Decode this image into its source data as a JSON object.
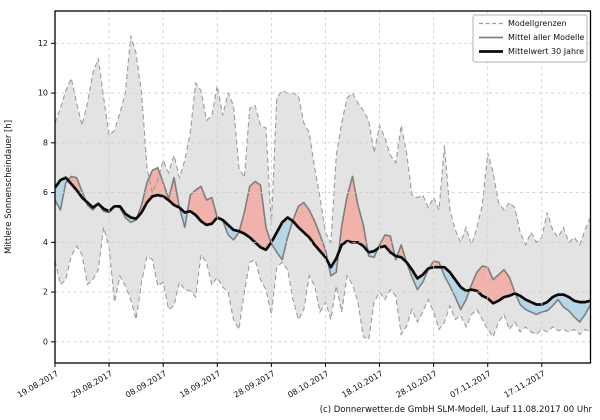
{
  "figure": {
    "ylabel": "Mittlere Sonnenscheindauer [h]",
    "footer": "(c) Donnerwetter.de GmbH SLM-Modell, Lauf 11.08.2017 00 Uhr"
  },
  "chart_data": {
    "type": "line",
    "title": "",
    "xlabel": "",
    "ylabel": "Mittlere Sonnenscheindauer [h]",
    "grid": true,
    "legend_position": "top-right",
    "xlim": [
      0,
      99
    ],
    "ylim": [
      -0.85,
      13.3
    ],
    "y_ticks": [
      0,
      2,
      4,
      6,
      8,
      10,
      12
    ],
    "x_tick_days": [
      0,
      10,
      20,
      30,
      40,
      50,
      60,
      70,
      80,
      90
    ],
    "x_tick_labels": [
      "19.08.2017",
      "29.08.2017",
      "08.09.2017",
      "18.09.2017",
      "28.09.2017",
      "08.10.2017",
      "18.10.2017",
      "28.10.2017",
      "07.11.2017",
      "17.11.2017"
    ],
    "legend": [
      {
        "label": "Modellgrenzen",
        "style": "dashed"
      },
      {
        "label": "Mittel aller Modelle",
        "style": "gray"
      },
      {
        "label": "Mittelwert 30 Jahre",
        "style": "black"
      }
    ],
    "colors": {
      "envelope_fill": "#e3e3e3",
      "envelope_border": "#9b9b9b",
      "model_mean_line": "#7f7f7f",
      "climate_mean_line": "#0b0b0b",
      "above_fill": "#f0b2aa",
      "below_fill": "#b7d6e7",
      "grid": "#cfcfcf",
      "axis": "#000000"
    },
    "series": [
      {
        "name": "Modellgrenzen (obere Grenze)",
        "role": "upper",
        "values": [
          8.8,
          9.4,
          10.1,
          10.6,
          9.6,
          8.7,
          9.6,
          10.8,
          11.4,
          9.8,
          8.3,
          8.5,
          9.2,
          10.0,
          12.3,
          11.6,
          10.0,
          7.0,
          6.0,
          6.5,
          7.3,
          6.8,
          7.5,
          6.6,
          7.3,
          8.4,
          10.4,
          10.1,
          8.9,
          9.1,
          10.3,
          9.1,
          10.0,
          9.5,
          7.0,
          6.6,
          9.4,
          9.5,
          8.7,
          8.6,
          4.7,
          9.8,
          10.1,
          10.0,
          10.0,
          9.9,
          8.8,
          8.4,
          7.0,
          5.8,
          4.4,
          4.0,
          7.5,
          8.8,
          9.8,
          10.0,
          9.6,
          9.3,
          8.9,
          7.6,
          8.7,
          8.2,
          7.5,
          7.2,
          8.7,
          7.6,
          5.9,
          5.8,
          5.9,
          5.4,
          5.8,
          5.3,
          7.9,
          5.3,
          4.5,
          4.0,
          4.6,
          3.9,
          4.6,
          5.5,
          7.6,
          6.8,
          5.6,
          5.3,
          5.6,
          5.4,
          4.4,
          3.9,
          4.4,
          4.0,
          4.2,
          5.2,
          4.5,
          4.2,
          4.6,
          4.0,
          4.2,
          3.9,
          4.5,
          5.0
        ]
      },
      {
        "name": "Modellgrenzen (untere Grenze)",
        "role": "lower",
        "values": [
          3.25,
          2.3,
          2.5,
          3.45,
          3.85,
          3.5,
          2.3,
          2.5,
          2.9,
          4.6,
          3.8,
          1.6,
          2.65,
          2.25,
          1.7,
          0.9,
          2.4,
          3.45,
          3.3,
          2.25,
          2.4,
          1.3,
          1.45,
          2.4,
          2.1,
          2.05,
          1.8,
          3.5,
          3.2,
          2.3,
          2.6,
          2.2,
          2.0,
          0.9,
          0.5,
          2.0,
          3.2,
          3.3,
          2.5,
          2.1,
          1.1,
          3.0,
          3.2,
          2.9,
          1.7,
          0.9,
          1.3,
          2.65,
          2.25,
          1.2,
          1.6,
          0.9,
          2.25,
          1.2,
          2.65,
          2.3,
          1.6,
          0.2,
          0.1,
          1.6,
          2.0,
          1.7,
          2.1,
          1.85,
          0.3,
          0.65,
          1.3,
          0.8,
          1.2,
          1.7,
          1.2,
          0.5,
          0.8,
          1.45,
          0.9,
          1.05,
          0.6,
          1.1,
          1.3,
          0.9,
          0.5,
          0.2,
          0.8,
          1.1,
          0.5,
          0.8,
          0.4,
          0.6,
          0.4,
          0.3,
          0.5,
          0.4,
          0.6,
          0.45,
          0.5,
          0.4,
          0.5,
          0.3,
          0.5,
          0.4
        ]
      },
      {
        "name": "Mittel aller Modelle",
        "role": "model_mean",
        "values": [
          5.7,
          5.3,
          6.4,
          6.65,
          6.6,
          6.05,
          5.5,
          5.3,
          5.55,
          5.25,
          5.2,
          5.45,
          5.4,
          5.0,
          4.8,
          4.9,
          5.5,
          6.4,
          6.9,
          7.0,
          6.4,
          5.75,
          6.6,
          5.4,
          4.6,
          5.9,
          6.1,
          6.25,
          5.7,
          5.8,
          5.0,
          4.9,
          4.3,
          4.1,
          4.4,
          5.2,
          6.25,
          6.45,
          6.3,
          4.6,
          3.95,
          3.6,
          3.3,
          4.2,
          4.9,
          5.45,
          5.6,
          5.3,
          4.85,
          4.3,
          3.7,
          2.65,
          2.8,
          4.65,
          5.85,
          6.65,
          5.5,
          4.7,
          3.45,
          3.4,
          3.9,
          4.3,
          4.25,
          3.3,
          3.9,
          3.2,
          2.6,
          2.1,
          2.4,
          2.9,
          3.25,
          3.2,
          2.65,
          2.25,
          1.8,
          1.3,
          1.7,
          2.3,
          2.8,
          3.05,
          3.0,
          2.5,
          2.7,
          2.9,
          2.6,
          2.0,
          1.5,
          1.3,
          1.2,
          1.1,
          1.2,
          1.25,
          1.45,
          1.7,
          1.4,
          1.25,
          1.0,
          0.8,
          1.1,
          1.5
        ]
      },
      {
        "name": "Mittelwert 30 Jahre",
        "role": "climate_mean",
        "values": [
          6.2,
          6.5,
          6.6,
          6.35,
          6.1,
          5.8,
          5.6,
          5.4,
          5.55,
          5.35,
          5.25,
          5.45,
          5.45,
          5.15,
          5.0,
          4.95,
          5.2,
          5.6,
          5.85,
          5.9,
          5.85,
          5.7,
          5.5,
          5.4,
          5.2,
          5.25,
          5.1,
          4.85,
          4.7,
          4.75,
          5.0,
          4.9,
          4.7,
          4.5,
          4.45,
          4.35,
          4.2,
          4.0,
          3.8,
          3.7,
          4.0,
          4.4,
          4.8,
          5.0,
          4.85,
          4.6,
          4.4,
          4.2,
          3.9,
          3.65,
          3.4,
          3.0,
          3.35,
          3.9,
          4.05,
          4.0,
          4.0,
          3.85,
          3.6,
          3.65,
          3.8,
          3.85,
          3.6,
          3.45,
          3.4,
          3.2,
          2.9,
          2.55,
          2.7,
          2.95,
          3.0,
          3.0,
          3.0,
          2.8,
          2.5,
          2.2,
          2.05,
          2.1,
          2.05,
          1.85,
          1.75,
          1.55,
          1.65,
          1.8,
          1.85,
          1.95,
          1.85,
          1.7,
          1.6,
          1.5,
          1.5,
          1.6,
          1.8,
          1.9,
          1.9,
          1.8,
          1.65,
          1.6,
          1.6,
          1.65
        ]
      }
    ]
  }
}
